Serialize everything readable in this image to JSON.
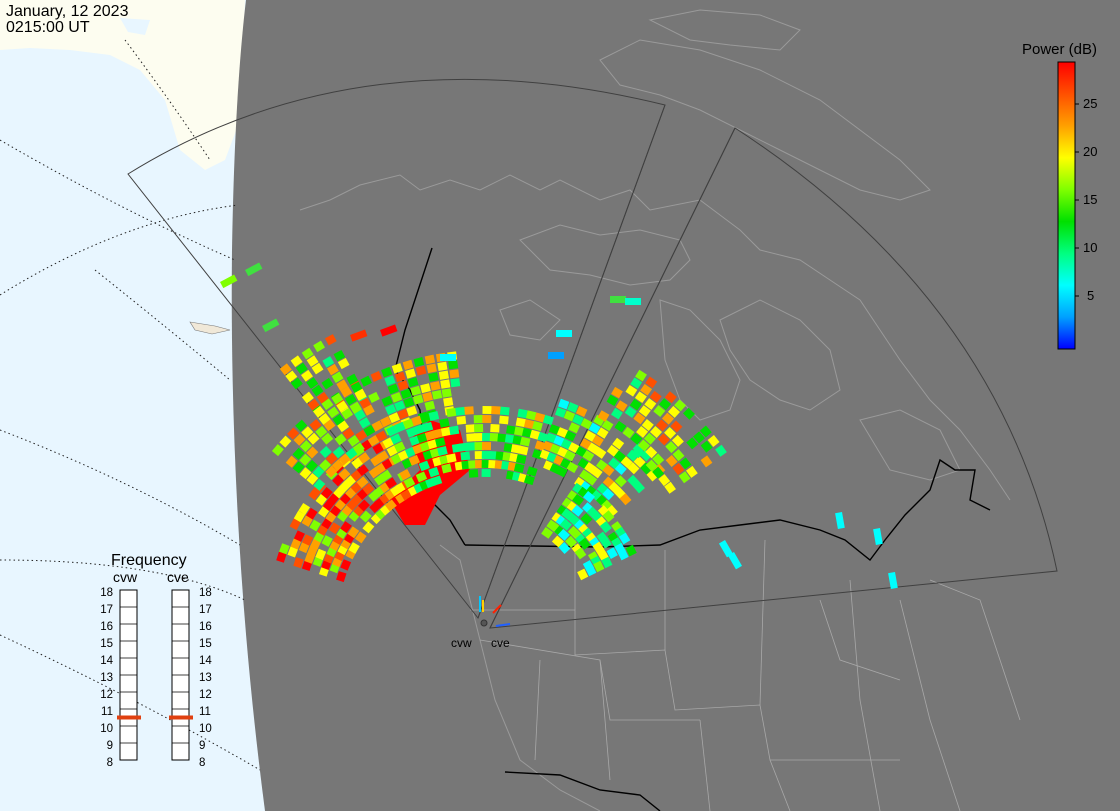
{
  "header": {
    "date": "January, 12 2023",
    "time": "0215:00 UT"
  },
  "colorbar": {
    "title": "Power (dB)",
    "ticks": [
      "25",
      "20",
      "15",
      "10",
      "5"
    ],
    "stops": [
      "#0000ff",
      "#00a0ff",
      "#00ffff",
      "#00ff80",
      "#00e000",
      "#80ff00",
      "#ffff00",
      "#ffa000",
      "#ff5000",
      "#ff0000"
    ]
  },
  "frequency": {
    "title": "Frequency",
    "radars": [
      {
        "name": "cvw",
        "value": 10.5
      },
      {
        "name": "cve",
        "value": 10.5
      }
    ],
    "scale": [
      "18",
      "17",
      "16",
      "15",
      "14",
      "13",
      "12",
      "11",
      "10",
      "9",
      "8"
    ]
  },
  "radar_labels": [
    "cvw",
    "cve"
  ],
  "colors": {
    "night": "#777777",
    "ocean_day": "#e8f6ff",
    "land_day": "#fdfdf0",
    "border": "#000000",
    "state_lines": "#9a9a9a",
    "fov": "#3c3c3c",
    "freq_marker": "#e04010"
  }
}
